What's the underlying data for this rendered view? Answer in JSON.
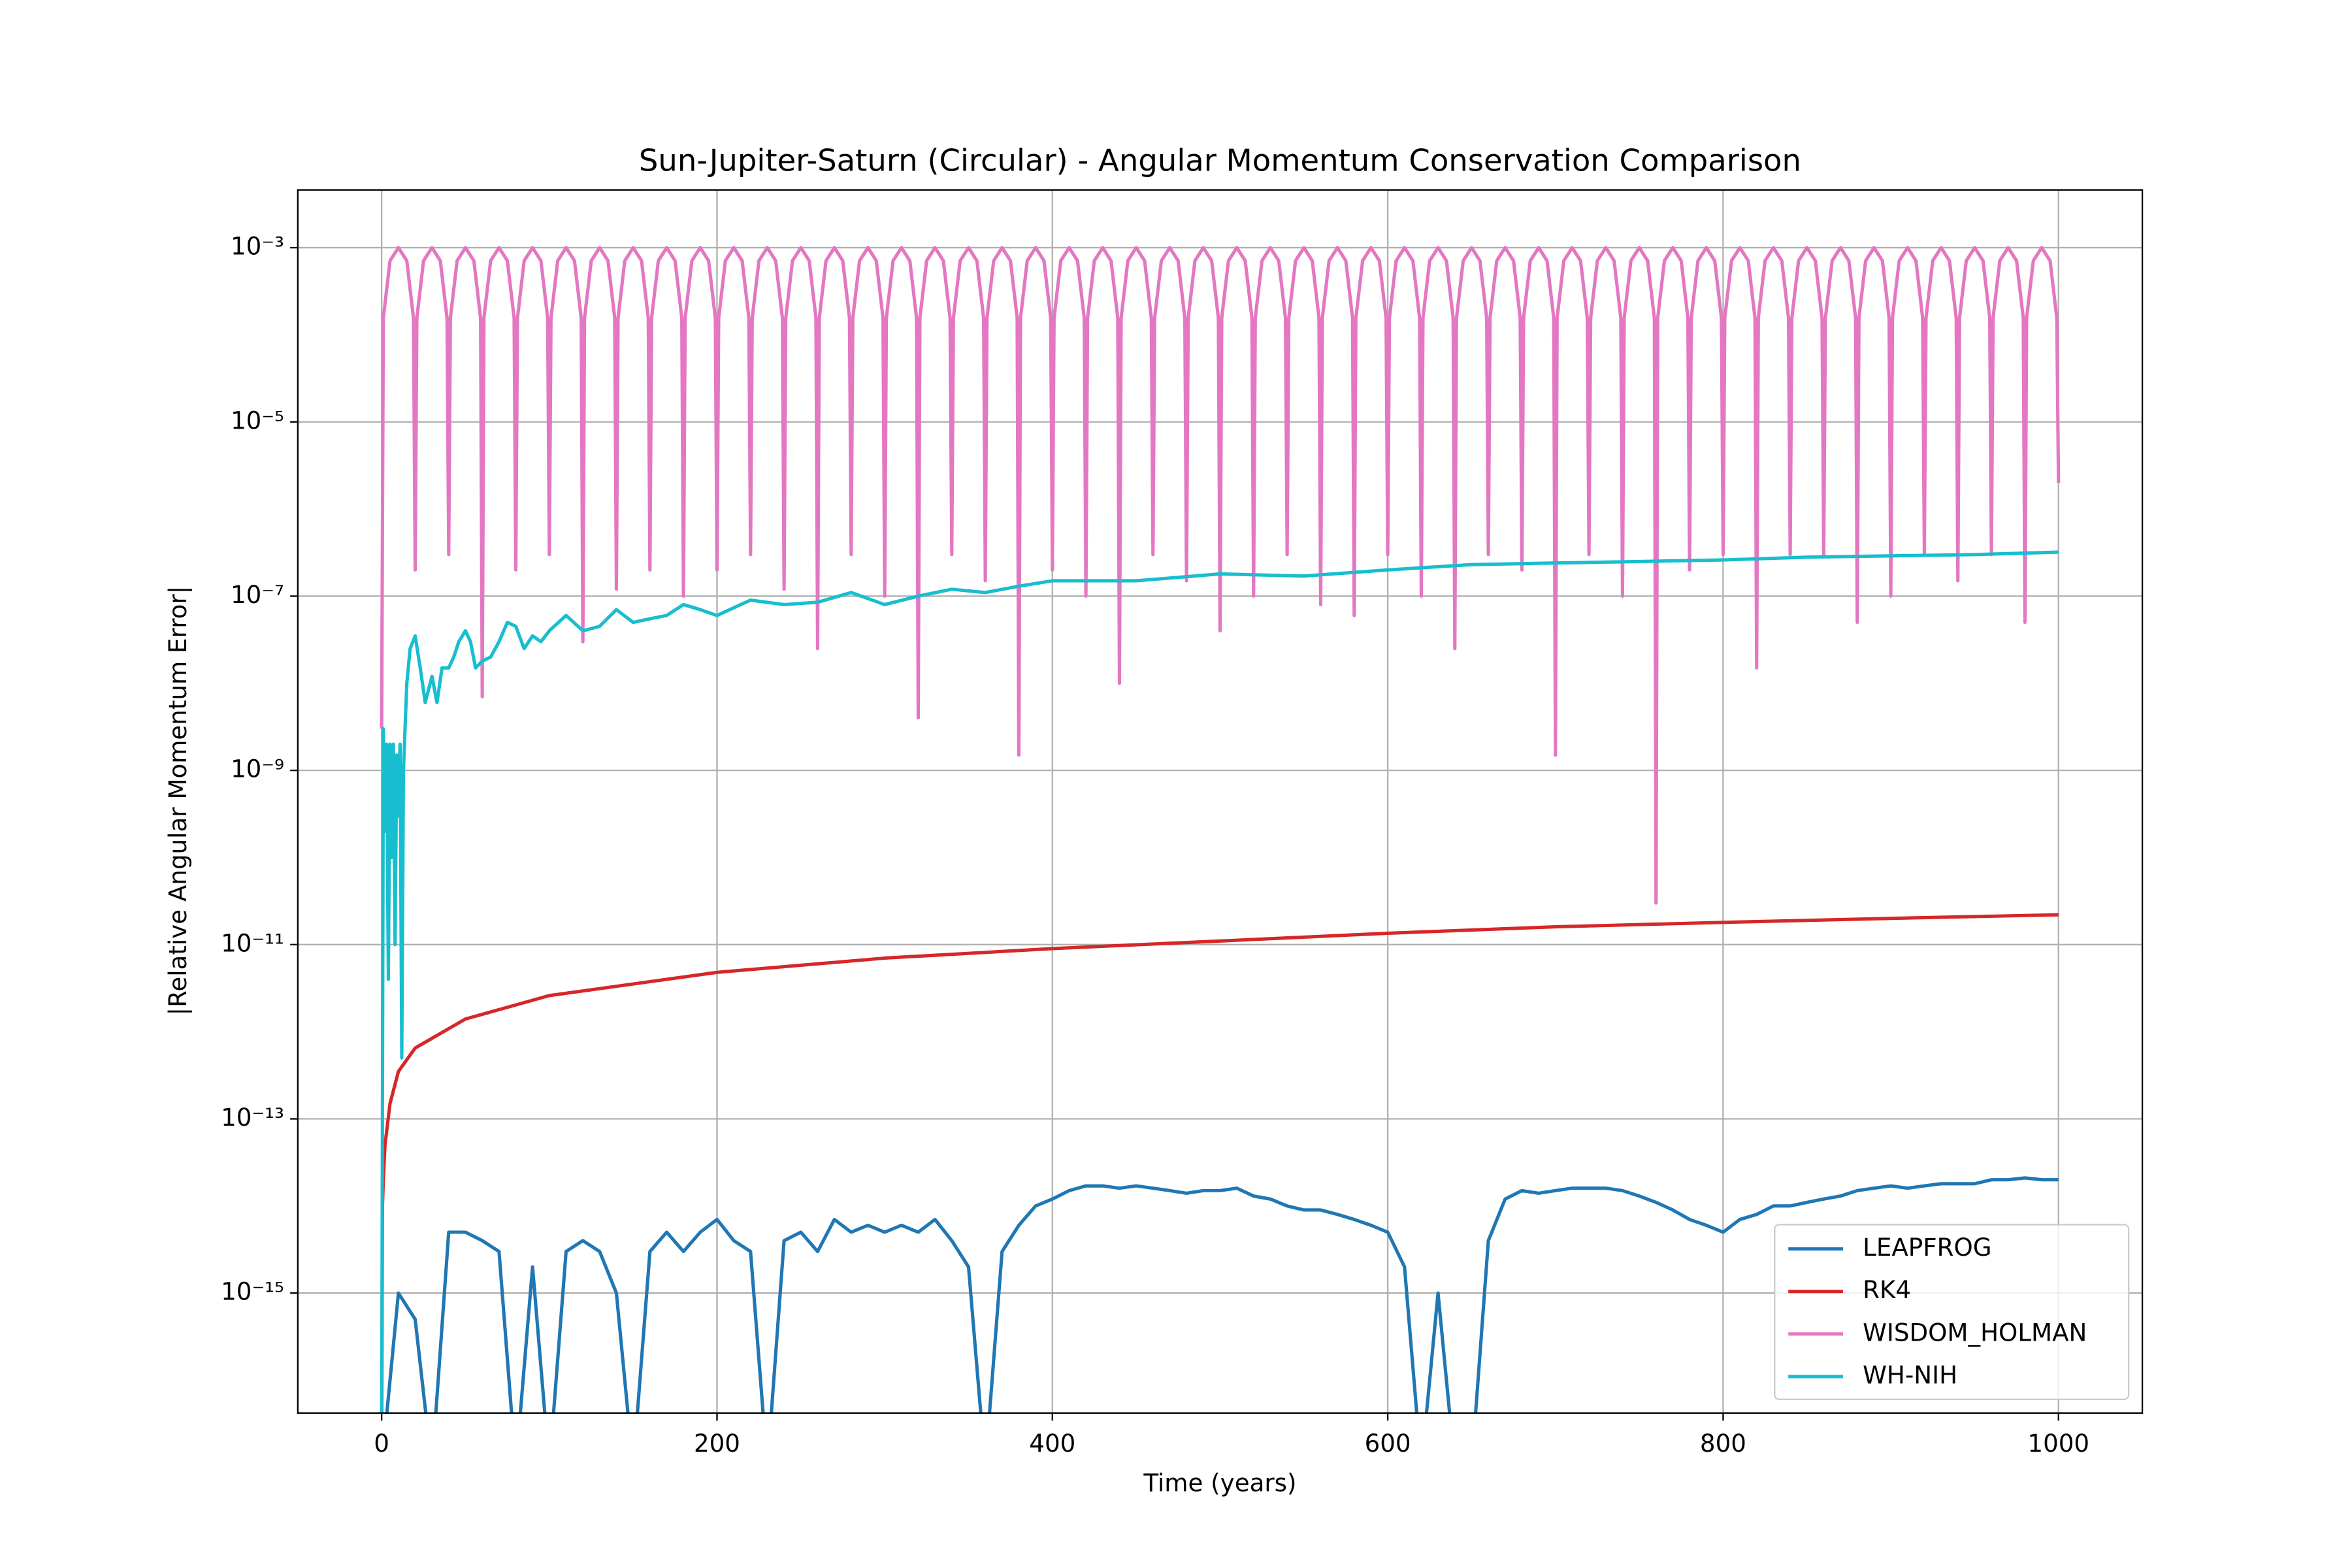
{
  "chart_data": {
    "type": "line",
    "title": "Sun-Jupiter-Saturn (Circular) - Angular Momentum Conservation Comparison",
    "xlabel": "Time (years)",
    "ylabel": "|Relative Angular Momentum Error|",
    "xlim": [
      -50,
      1050
    ],
    "ylim": [
      4.2e-17,
      0.0046
    ],
    "log_y": true,
    "grid": true,
    "legend": "lower right",
    "xticks": [
      0,
      200,
      400,
      600,
      800,
      1000
    ],
    "yticks": [
      {
        "value": 0.001,
        "label": "10⁻³"
      },
      {
        "value": 1e-05,
        "label": "10⁻⁵"
      },
      {
        "value": 1e-07,
        "label": "10⁻⁷"
      },
      {
        "value": 1e-09,
        "label": "10⁻⁹"
      },
      {
        "value": 1e-11,
        "label": "10⁻¹¹"
      },
      {
        "value": 1e-13,
        "label": "10⁻¹³"
      },
      {
        "value": 1e-15,
        "label": "10⁻¹⁵"
      }
    ],
    "series": [
      {
        "name": "LEAPFROG",
        "color": "#1f77b4",
        "x": [
          0,
          10,
          20,
          30,
          40,
          50,
          60,
          70,
          80,
          90,
          100,
          110,
          120,
          130,
          140,
          150,
          160,
          170,
          180,
          190,
          200,
          210,
          220,
          230,
          240,
          250,
          260,
          270,
          280,
          290,
          300,
          310,
          320,
          330,
          340,
          350,
          360,
          370,
          380,
          390,
          400,
          410,
          420,
          430,
          440,
          450,
          460,
          470,
          480,
          490,
          500,
          510,
          520,
          530,
          540,
          550,
          560,
          570,
          580,
          590,
          600,
          610,
          620,
          630,
          640,
          650,
          660,
          670,
          680,
          690,
          700,
          710,
          720,
          730,
          740,
          750,
          760,
          770,
          780,
          790,
          800,
          810,
          820,
          830,
          840,
          850,
          860,
          870,
          880,
          890,
          900,
          910,
          920,
          930,
          940,
          950,
          960,
          970,
          980,
          990,
          1000
        ],
        "values": [
          1e-17,
          1e-15,
          5e-16,
          1e-17,
          5e-15,
          5e-15,
          4e-15,
          3e-15,
          1e-17,
          2e-15,
          1e-17,
          3e-15,
          4e-15,
          3e-15,
          1e-15,
          1e-17,
          3e-15,
          5e-15,
          3e-15,
          5e-15,
          7e-15,
          4e-15,
          3e-15,
          1e-17,
          4e-15,
          5e-15,
          3e-15,
          7e-15,
          5e-15,
          6e-15,
          5e-15,
          6e-15,
          5e-15,
          7e-15,
          4e-15,
          2e-15,
          1e-17,
          3e-15,
          6e-15,
          1e-14,
          1.2e-14,
          1.5e-14,
          1.7e-14,
          1.7e-14,
          1.6e-14,
          1.7e-14,
          1.6e-14,
          1.5e-14,
          1.4e-14,
          1.5e-14,
          1.5e-14,
          1.6e-14,
          1.3e-14,
          1.2e-14,
          1e-14,
          9e-15,
          9e-15,
          8e-15,
          7e-15,
          6e-15,
          5e-15,
          2e-15,
          1e-17,
          1e-15,
          1e-17,
          1e-17,
          4e-15,
          1.2e-14,
          1.5e-14,
          1.4e-14,
          1.5e-14,
          1.6e-14,
          1.6e-14,
          1.6e-14,
          1.5e-14,
          1.3e-14,
          1.1e-14,
          9e-15,
          7e-15,
          6e-15,
          5e-15,
          7e-15,
          8e-15,
          1e-14,
          1e-14,
          1.1e-14,
          1.2e-14,
          1.3e-14,
          1.5e-14,
          1.6e-14,
          1.7e-14,
          1.6e-14,
          1.7e-14,
          1.8e-14,
          1.8e-14,
          1.8e-14,
          2e-14,
          2e-14,
          2.1e-14,
          2e-14,
          2e-14
        ]
      },
      {
        "name": "RK4",
        "color": "#d62728",
        "x": [
          0,
          0.5,
          1,
          2,
          5,
          10,
          20,
          50,
          100,
          200,
          300,
          400,
          500,
          600,
          700,
          800,
          900,
          1000
        ],
        "values": [
          1e-17,
          1e-14,
          2e-14,
          5e-14,
          1.5e-13,
          3.5e-13,
          6.5e-13,
          1.4e-12,
          2.6e-12,
          4.8e-12,
          7e-12,
          9e-12,
          1.1e-11,
          1.35e-11,
          1.6e-11,
          1.8e-11,
          2e-11,
          2.2e-11
        ]
      },
      {
        "name": "WISDOM_HOLMAN",
        "color": "#e377c2",
        "x": [
          0,
          1,
          5,
          10,
          15,
          19,
          20,
          21,
          25,
          30,
          35,
          39,
          40,
          41,
          45,
          50,
          55,
          59,
          60,
          61,
          65,
          70,
          75,
          79,
          80,
          81,
          85,
          90,
          95,
          99,
          100,
          101,
          105,
          110,
          115,
          119,
          120,
          121,
          125,
          130,
          135,
          139,
          140,
          141,
          145,
          150,
          155,
          159,
          160,
          161,
          165,
          170,
          175,
          179,
          180,
          181,
          185,
          190,
          195,
          199,
          200,
          201,
          205,
          210,
          215,
          219,
          220,
          221,
          225,
          230,
          235,
          239,
          240,
          241,
          245,
          250,
          255,
          259,
          260,
          261,
          265,
          270,
          275,
          279,
          280,
          281,
          285,
          290,
          295,
          299,
          300,
          301,
          305,
          310,
          315,
          319,
          320,
          321,
          325,
          330,
          335,
          339,
          340,
          341,
          345,
          350,
          355,
          359,
          360,
          361,
          365,
          370,
          375,
          379,
          380,
          381,
          385,
          390,
          395,
          399,
          400,
          401,
          405,
          410,
          415,
          419,
          420,
          421,
          425,
          430,
          435,
          439,
          440,
          441,
          445,
          450,
          455,
          459,
          460,
          461,
          465,
          470,
          475,
          479,
          480,
          481,
          485,
          490,
          495,
          499,
          500,
          501,
          505,
          510,
          515,
          519,
          520,
          521,
          525,
          530,
          535,
          539,
          540,
          541,
          545,
          550,
          555,
          559,
          560,
          561,
          565,
          570,
          575,
          579,
          580,
          581,
          585,
          590,
          595,
          599,
          600,
          601,
          605,
          610,
          615,
          619,
          620,
          621,
          625,
          630,
          635,
          639,
          640,
          641,
          645,
          650,
          655,
          659,
          660,
          661,
          665,
          670,
          675,
          679,
          680,
          681,
          685,
          690,
          695,
          699,
          700,
          701,
          705,
          710,
          715,
          719,
          720,
          721,
          725,
          730,
          735,
          739,
          740,
          741,
          745,
          750,
          755,
          759,
          760,
          761,
          765,
          770,
          775,
          779,
          780,
          781,
          785,
          790,
          795,
          799,
          800,
          801,
          805,
          810,
          815,
          819,
          820,
          821,
          825,
          830,
          835,
          839,
          840,
          841,
          845,
          850,
          855,
          859,
          860,
          861,
          865,
          870,
          875,
          879,
          880,
          881,
          885,
          890,
          895,
          899,
          900,
          901,
          905,
          910,
          915,
          919,
          920,
          921,
          925,
          930,
          935,
          939,
          940,
          941,
          945,
          950,
          955,
          959,
          960,
          961,
          965,
          970,
          975,
          979,
          980,
          981,
          985,
          990,
          995,
          999,
          1000
        ],
        "values": [
          3e-09,
          0.000156,
          0.000707,
          0.001,
          0.000707,
          0.000156,
          2e-07,
          0.000156,
          0.000707,
          0.001,
          0.000707,
          0.000156,
          3e-07,
          0.000156,
          0.000707,
          0.001,
          0.000707,
          0.000156,
          7e-09,
          0.000156,
          0.000707,
          0.001,
          0.000707,
          0.000156,
          2e-07,
          0.000156,
          0.000707,
          0.001,
          0.000707,
          0.000156,
          3e-07,
          0.000156,
          0.000707,
          0.001,
          0.000707,
          0.000156,
          3e-08,
          0.000156,
          0.000707,
          0.001,
          0.000707,
          0.000156,
          1.2e-07,
          0.000156,
          0.000707,
          0.001,
          0.000707,
          0.000156,
          2e-07,
          0.000156,
          0.000707,
          0.001,
          0.000707,
          0.000156,
          1e-07,
          0.000156,
          0.000707,
          0.001,
          0.000707,
          0.000156,
          2e-07,
          0.000156,
          0.000707,
          0.001,
          0.000707,
          0.000156,
          3e-07,
          0.000156,
          0.000707,
          0.001,
          0.000707,
          0.000156,
          1.2e-07,
          0.000156,
          0.000707,
          0.001,
          0.000707,
          0.000156,
          2.5e-08,
          0.000156,
          0.000707,
          0.001,
          0.000707,
          0.000156,
          3e-07,
          0.000156,
          0.000707,
          0.001,
          0.000707,
          0.000156,
          1e-07,
          0.000156,
          0.000707,
          0.001,
          0.000707,
          0.000156,
          4e-09,
          0.000156,
          0.000707,
          0.001,
          0.000707,
          0.000156,
          3e-07,
          0.000156,
          0.000707,
          0.001,
          0.000707,
          0.000156,
          1.5e-07,
          0.000156,
          0.000707,
          0.001,
          0.000707,
          0.000156,
          1.5e-09,
          0.000156,
          0.000707,
          0.001,
          0.000707,
          0.000156,
          2e-07,
          0.000156,
          0.000707,
          0.001,
          0.000707,
          0.000156,
          1e-07,
          0.000156,
          0.000707,
          0.001,
          0.000707,
          0.000156,
          1e-08,
          0.000156,
          0.000707,
          0.001,
          0.000707,
          0.000156,
          3e-07,
          0.000156,
          0.000707,
          0.001,
          0.000707,
          0.000156,
          1.5e-07,
          0.000156,
          0.000707,
          0.001,
          0.000707,
          0.000156,
          4e-08,
          0.000156,
          0.000707,
          0.001,
          0.000707,
          0.000156,
          1e-07,
          0.000156,
          0.000707,
          0.001,
          0.000707,
          0.000156,
          3e-07,
          0.000156,
          0.000707,
          0.001,
          0.000707,
          0.000156,
          8e-08,
          0.000156,
          0.000707,
          0.001,
          0.000707,
          0.000156,
          6e-08,
          0.000156,
          0.000707,
          0.001,
          0.000707,
          0.000156,
          3e-07,
          0.000156,
          0.000707,
          0.001,
          0.000707,
          0.000156,
          1e-07,
          0.000156,
          0.000707,
          0.001,
          0.000707,
          0.000156,
          2.5e-08,
          0.000156,
          0.000707,
          0.001,
          0.000707,
          0.000156,
          3e-07,
          0.000156,
          0.000707,
          0.001,
          0.000707,
          0.000156,
          2e-07,
          0.000156,
          0.000707,
          0.001,
          0.000707,
          0.000156,
          1.5e-09,
          0.000156,
          0.000707,
          0.001,
          0.000707,
          0.000156,
          3e-07,
          0.000156,
          0.000707,
          0.001,
          0.000707,
          0.000156,
          1e-07,
          0.000156,
          0.000707,
          0.001,
          0.000707,
          0.000156,
          3e-11,
          0.000156,
          0.000707,
          0.001,
          0.000707,
          0.000156,
          2e-07,
          0.000156,
          0.000707,
          0.001,
          0.000707,
          0.000156,
          3e-07,
          0.000156,
          0.000707,
          0.001,
          0.000707,
          0.000156,
          1.5e-08,
          0.000156,
          0.000707,
          0.001,
          0.000707,
          0.000156,
          3e-07,
          0.000156,
          0.000707,
          0.001,
          0.000707,
          0.000156,
          3e-07,
          0.000156,
          0.000707,
          0.001,
          0.000707,
          0.000156,
          5e-08,
          0.000156,
          0.000707,
          0.001,
          0.000707,
          0.000156,
          1e-07,
          0.000156,
          0.000707,
          0.001,
          0.000707,
          0.000156,
          3e-07,
          0.000156,
          0.000707,
          0.001,
          0.000707,
          0.000156,
          1.5e-07,
          0.000156,
          0.000707,
          0.001,
          0.000707,
          0.000156,
          3e-07,
          0.000156,
          0.000707,
          0.001,
          0.000707,
          0.000156,
          5e-08,
          0.000156,
          0.000707,
          0.001,
          0.000707,
          0.000156,
          2e-06
        ]
      },
      {
        "name": "WH-NIH",
        "color": "#17becf",
        "x": [
          0,
          1,
          2,
          3,
          4,
          5,
          6,
          7,
          8,
          9,
          10,
          11,
          12,
          13,
          15,
          17,
          20,
          23,
          26,
          30,
          33,
          36,
          40,
          43,
          46,
          50,
          53,
          56,
          60,
          65,
          70,
          75,
          80,
          85,
          90,
          95,
          100,
          110,
          120,
          130,
          140,
          150,
          160,
          170,
          180,
          190,
          200,
          220,
          240,
          260,
          280,
          300,
          320,
          340,
          360,
          380,
          400,
          450,
          500,
          550,
          600,
          650,
          700,
          750,
          800,
          850,
          900,
          950,
          1000
        ],
        "values": [
          1e-17,
          3e-09,
          2e-10,
          2e-09,
          4e-12,
          2e-09,
          1e-10,
          2e-09,
          1e-11,
          1.5e-09,
          3e-10,
          2e-09,
          5e-13,
          1e-09,
          1e-08,
          2.5e-08,
          3.5e-08,
          1.5e-08,
          6e-09,
          1.2e-08,
          6e-09,
          1.5e-08,
          1.5e-08,
          2e-08,
          3e-08,
          4e-08,
          3e-08,
          1.5e-08,
          1.8e-08,
          2e-08,
          3e-08,
          5e-08,
          4.5e-08,
          2.5e-08,
          3.5e-08,
          3e-08,
          4e-08,
          6e-08,
          4e-08,
          4.5e-08,
          7e-08,
          5e-08,
          5.5e-08,
          6e-08,
          8e-08,
          7e-08,
          6e-08,
          9e-08,
          8e-08,
          8.5e-08,
          1.1e-07,
          8e-08,
          1e-07,
          1.2e-07,
          1.1e-07,
          1.3e-07,
          1.5e-07,
          1.5e-07,
          1.8e-07,
          1.7e-07,
          2e-07,
          2.3e-07,
          2.4e-07,
          2.5e-07,
          2.6e-07,
          2.8e-07,
          2.9e-07,
          3e-07,
          3.2e-07
        ]
      }
    ]
  }
}
